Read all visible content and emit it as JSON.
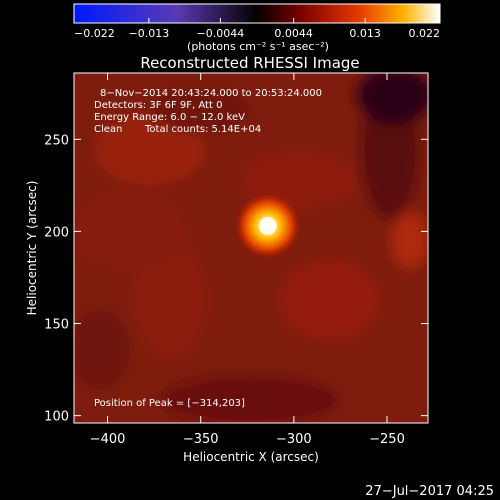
{
  "chart_data": {
    "type": "heatmap",
    "title": "Reconstructed RHESSI Image",
    "xlabel": "Heliocentric X (arcsec)",
    "ylabel": "Heliocentric Y (arcsec)",
    "xlim": [
      -418,
      -228
    ],
    "ylim": [
      96,
      286
    ],
    "x_ticks": [
      -400,
      -350,
      -300,
      -250
    ],
    "x_tick_labels": [
      "−400",
      "−350",
      "−300",
      "−250"
    ],
    "y_ticks": [
      100,
      150,
      200,
      250
    ],
    "y_tick_labels": [
      "100",
      "150",
      "200",
      "250"
    ],
    "colorbar": {
      "range": [
        -0.022,
        0.022
      ],
      "ticks": [
        -0.022,
        -0.013,
        -0.0044,
        0.0044,
        0.013,
        0.022
      ],
      "tick_labels": [
        "−0.022",
        "−0.013",
        "−0.0044",
        "0.0044",
        "0.013",
        "0.022"
      ],
      "unit_label": "(photons cm⁻² s⁻¹ asec⁻²)",
      "colormap": "blue-purple-black-red-orange-yellow-white"
    },
    "annotations": {
      "line1": "8−Nov−2014 20:43:24.000 to 20:53:24.000",
      "line2": "Detectors: 3F 6F 9F, Att 0",
      "line3": "Energy Range: 6.0 − 12.0 keV",
      "line4a": "Clean",
      "line4b": "Total counts: 5.14E+04",
      "peak": "Position of Peak = [−314,203]"
    },
    "peak_position": [
      -314,
      203
    ],
    "peak_value": 0.022,
    "background_level": 0.006
  },
  "footer": {
    "timestamp": "27−Jul−2017 04:25"
  }
}
